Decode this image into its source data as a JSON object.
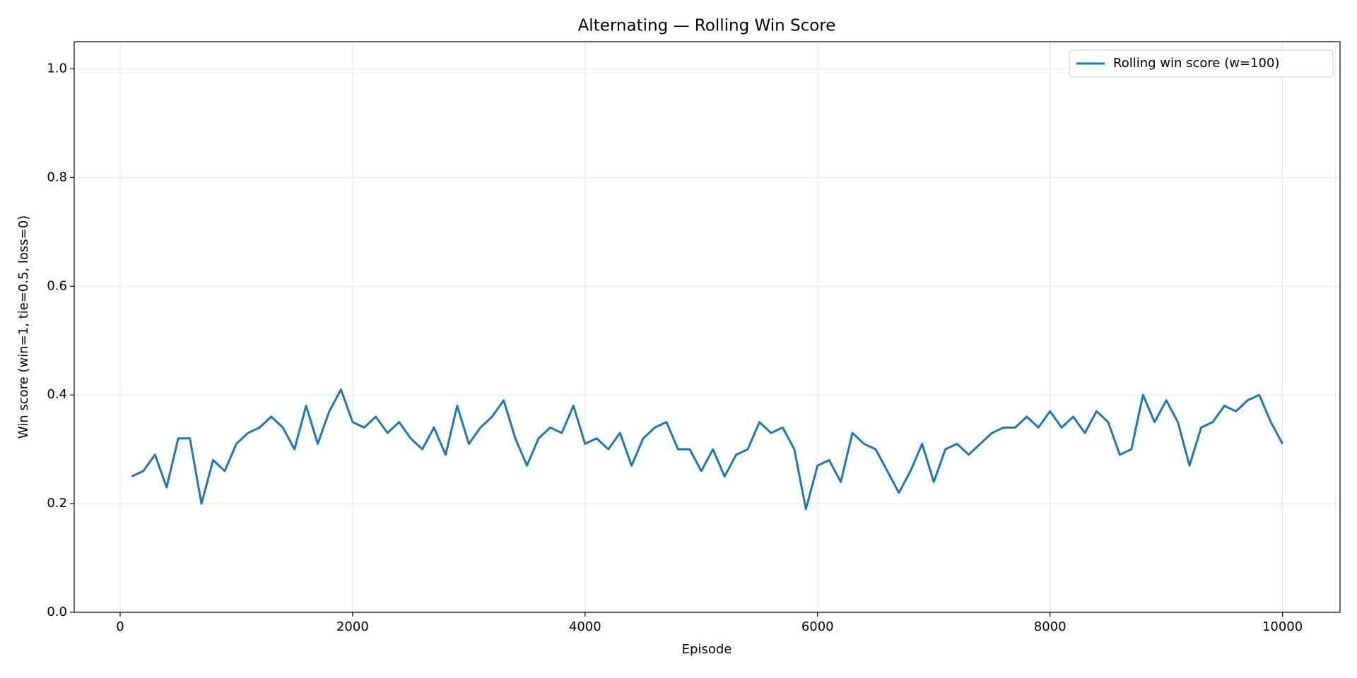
{
  "chart_data": {
    "type": "line",
    "title": "Alternating — Rolling Win Score",
    "xlabel": "Episode",
    "ylabel": "Win score (win=1, tie=0.5, loss=0)",
    "x": [
      100,
      200,
      300,
      400,
      500,
      600,
      700,
      800,
      900,
      1000,
      1100,
      1200,
      1300,
      1400,
      1500,
      1600,
      1700,
      1800,
      1900,
      2000,
      2100,
      2200,
      2300,
      2400,
      2500,
      2600,
      2700,
      2800,
      2900,
      3000,
      3100,
      3200,
      3300,
      3400,
      3500,
      3600,
      3700,
      3800,
      3900,
      4000,
      4100,
      4200,
      4300,
      4400,
      4500,
      4600,
      4700,
      4800,
      4900,
      5000,
      5100,
      5200,
      5300,
      5400,
      5500,
      5600,
      5700,
      5800,
      5900,
      6000,
      6100,
      6200,
      6300,
      6400,
      6500,
      6600,
      6700,
      6800,
      6900,
      7000,
      7100,
      7200,
      7300,
      7400,
      7500,
      7600,
      7700,
      7800,
      7900,
      8000,
      8100,
      8200,
      8300,
      8400,
      8500,
      8600,
      8700,
      8800,
      8900,
      9000,
      9100,
      9200,
      9300,
      9400,
      9500,
      9600,
      9700,
      9800,
      9900,
      10000
    ],
    "series": [
      {
        "name": "Rolling win score (w=100)",
        "color": "#1f77b4",
        "values": [
          0.25,
          0.26,
          0.29,
          0.23,
          0.32,
          0.32,
          0.2,
          0.28,
          0.26,
          0.31,
          0.33,
          0.34,
          0.36,
          0.34,
          0.3,
          0.38,
          0.31,
          0.37,
          0.41,
          0.35,
          0.34,
          0.36,
          0.33,
          0.35,
          0.32,
          0.3,
          0.34,
          0.29,
          0.38,
          0.31,
          0.34,
          0.36,
          0.39,
          0.32,
          0.27,
          0.32,
          0.34,
          0.33,
          0.38,
          0.31,
          0.32,
          0.3,
          0.33,
          0.27,
          0.32,
          0.34,
          0.35,
          0.3,
          0.3,
          0.26,
          0.3,
          0.25,
          0.29,
          0.3,
          0.35,
          0.33,
          0.34,
          0.3,
          0.19,
          0.27,
          0.28,
          0.24,
          0.33,
          0.31,
          0.3,
          0.26,
          0.22,
          0.26,
          0.31,
          0.24,
          0.3,
          0.31,
          0.29,
          0.31,
          0.33,
          0.34,
          0.34,
          0.36,
          0.34,
          0.37,
          0.34,
          0.36,
          0.33,
          0.37,
          0.35,
          0.29,
          0.3,
          0.4,
          0.35,
          0.39,
          0.35,
          0.27,
          0.34,
          0.35,
          0.38,
          0.37,
          0.39,
          0.4,
          0.35,
          0.31
        ]
      }
    ],
    "xlim": [
      -395,
      10495
    ],
    "ylim": [
      0,
      1.05
    ],
    "xticks": [
      0,
      2000,
      4000,
      6000,
      8000,
      10000
    ],
    "yticks": [
      {
        "value": 0,
        "label": "0.0"
      },
      {
        "value": 0.2,
        "label": "0.2"
      },
      {
        "value": 0.4,
        "label": "0.4"
      },
      {
        "value": 0.6,
        "label": "0.6"
      },
      {
        "value": 0.8,
        "label": "0.8"
      },
      {
        "value": 1.0,
        "label": "1.0"
      }
    ],
    "grid": true,
    "legend": "upper right"
  }
}
